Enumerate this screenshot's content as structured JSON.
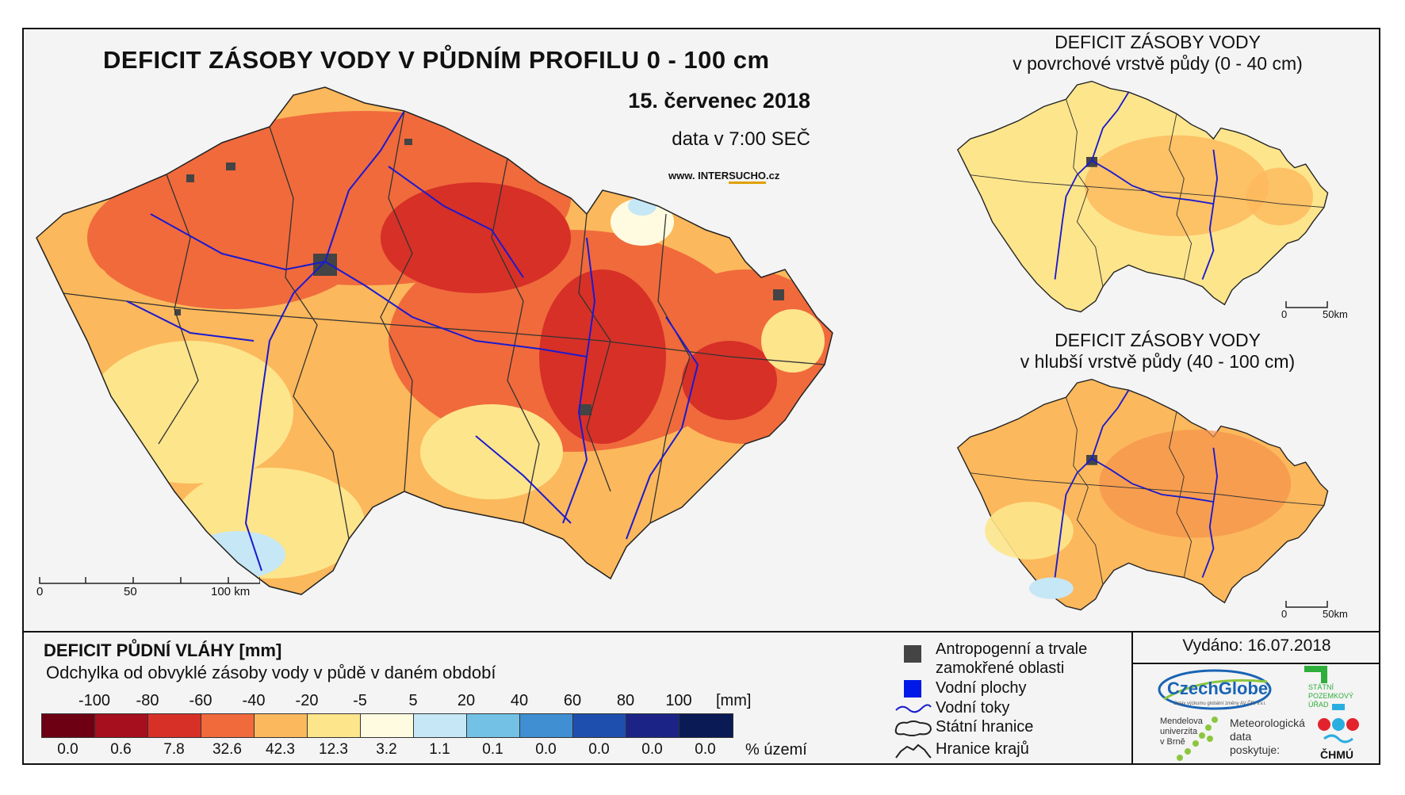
{
  "map": {
    "title": "DEFICIT ZÁSOBY VODY V PŮDNÍM PROFILU 0 - 100 cm",
    "date": "15. červenec 2018",
    "time_note": "data v 7:00 SEČ",
    "website_prefix": "www. INTER",
    "website_highlight": "SUCHO",
    "website_suffix": ".cz",
    "scale": {
      "labels": [
        "0",
        "50",
        "100 km"
      ]
    }
  },
  "inset_top": {
    "title_line1": "DEFICIT ZÁSOBY VODY",
    "title_line2": "v povrchové vrstvě půdy (0 - 40 cm)",
    "scale": {
      "labels": [
        "0",
        "50km"
      ]
    }
  },
  "inset_bottom": {
    "title_line1": "DEFICIT ZÁSOBY VODY",
    "title_line2": "v hlubší vrstvě půdy (40 - 100 cm)",
    "scale": {
      "labels": [
        "0",
        "50km"
      ]
    }
  },
  "legend": {
    "title": "DEFICIT PŮDNÍ VLÁHY [mm]",
    "subtitle": "Odchylka od obvyklé zásoby vody v půdě v daném období",
    "tick_labels": [
      "-100",
      "-80",
      "-60",
      "-40",
      "-20",
      "-5",
      "5",
      "20",
      "40",
      "60",
      "80",
      "100"
    ],
    "unit": "[mm]",
    "classes": [
      {
        "color": "#6e0014",
        "percent": "0.0"
      },
      {
        "color": "#a50f1e",
        "percent": "0.6"
      },
      {
        "color": "#d73027",
        "percent": "7.8"
      },
      {
        "color": "#f06a3c",
        "percent": "32.6"
      },
      {
        "color": "#fcb85c",
        "percent": "42.3"
      },
      {
        "color": "#fde58c",
        "percent": "12.3"
      },
      {
        "color": "#fffbe0",
        "percent": "3.2"
      },
      {
        "color": "#c6e7f5",
        "percent": "1.1"
      },
      {
        "color": "#74c1e6",
        "percent": "0.1"
      },
      {
        "color": "#3f8fd2",
        "percent": "0.0"
      },
      {
        "color": "#1f4fae",
        "percent": "0.0"
      },
      {
        "color": "#1b2486",
        "percent": "0.0"
      },
      {
        "color": "#0a1a55",
        "percent": "0.0"
      }
    ],
    "percent_unit": "% území"
  },
  "symbols": {
    "anthropogenic_line1": "Antropogenní a trvale",
    "anthropogenic_line2": "zamokřené oblasti",
    "water_bodies": "Vodní plochy",
    "rivers": "Vodní toky",
    "state_border": "Státní hranice",
    "region_border": "Hranice krajů"
  },
  "issued": "Vydáno: 16.07.2018",
  "logos": {
    "czechglobe": "CzechGlobe",
    "czechglobe_sub": "Ústav výzkumu globální změny AV ČR, v.v.i.",
    "spu": [
      "STÁTNÍ",
      "POZEMKOVÝ",
      "ÚŘAD"
    ],
    "mendel": [
      "Mendelova",
      "univerzita",
      "v Brně"
    ],
    "meteo": [
      "Meteorologická",
      "data",
      "poskytuje:"
    ],
    "chmu": "ČHMÚ"
  }
}
